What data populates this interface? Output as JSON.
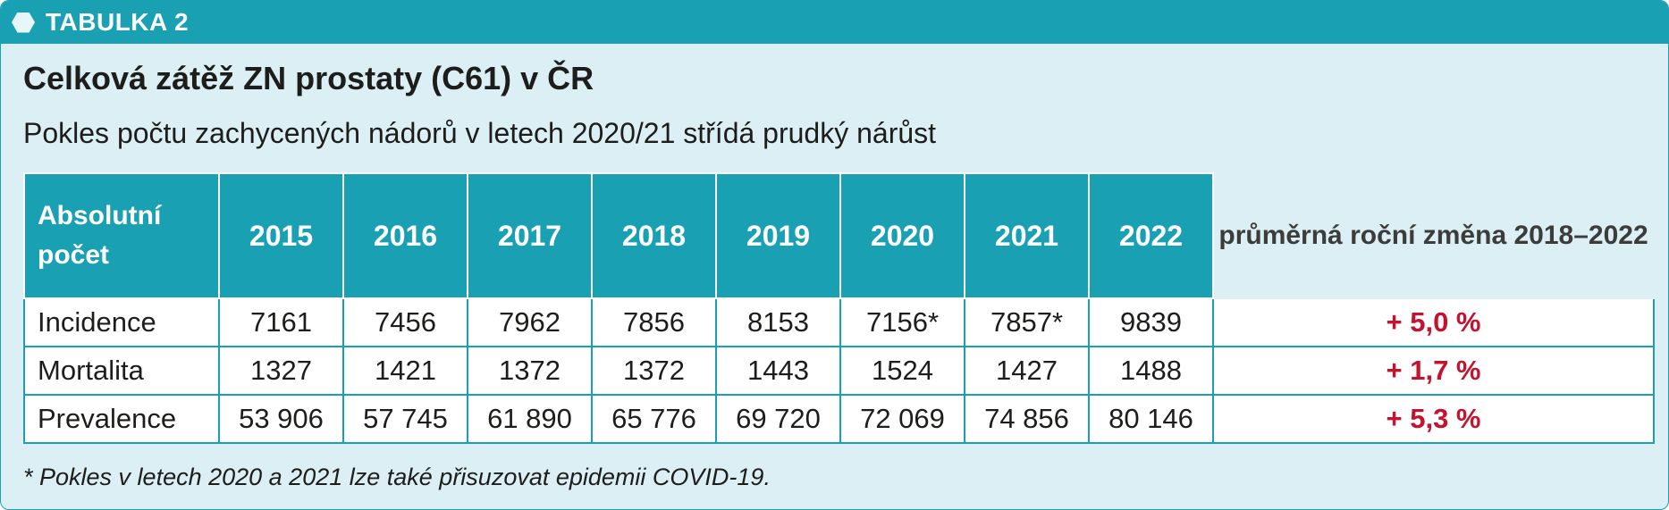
{
  "header": {
    "label": "TABULKA 2",
    "icon": "hexagon-icon"
  },
  "title": "Celková zátěž ZN prostaty (C61) v ČR",
  "subtitle": "Pokles počtu zachycených nádorů v letech 2020/21 střídá prudký nárůst",
  "table": {
    "row_header": "Absolutní počet",
    "years": [
      "2015",
      "2016",
      "2017",
      "2018",
      "2019",
      "2020",
      "2021",
      "2022"
    ],
    "avg_header": "průměrná roční změna 2018–2022",
    "rows": [
      {
        "label": "Incidence",
        "values": [
          "7161",
          "7456",
          "7962",
          "7856",
          "8153",
          "7156*",
          "7857*",
          "9839"
        ],
        "change": "+ 5,0 %"
      },
      {
        "label": "Mortalita",
        "values": [
          "1327",
          "1421",
          "1372",
          "1372",
          "1443",
          "1524",
          "1427",
          "1488"
        ],
        "change": "+ 1,7 %"
      },
      {
        "label": "Prevalence",
        "values": [
          "53 906",
          "57 745",
          "61 890",
          "65 776",
          "69 720",
          "72 069",
          "74 856",
          "80 146"
        ],
        "change": "+ 5,3 %"
      }
    ]
  },
  "footnote": "* Pokles v letech 2020 a 2021 lze také přisuzovat epidemii COVID-19.",
  "colors": {
    "accent": "#1aa0b3",
    "background": "#dbeff4",
    "change": "#c4122f"
  }
}
